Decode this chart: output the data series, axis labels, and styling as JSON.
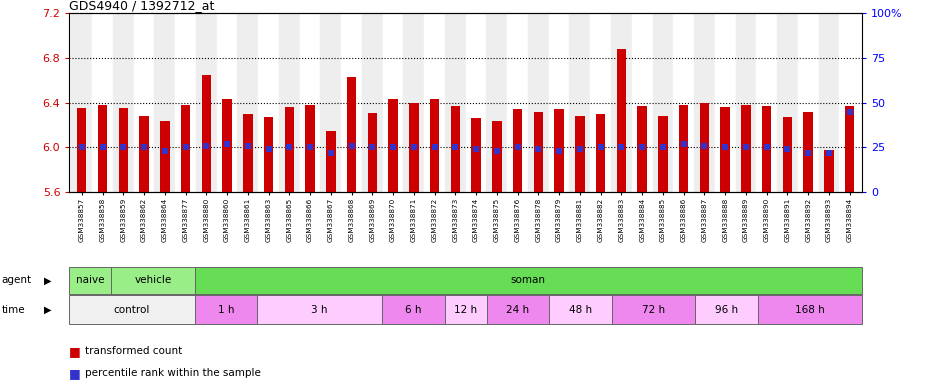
{
  "title": "GDS4940 / 1392712_at",
  "samples": [
    "GSM338857",
    "GSM338858",
    "GSM338859",
    "GSM338862",
    "GSM338864",
    "GSM338877",
    "GSM338880",
    "GSM338860",
    "GSM338861",
    "GSM338863",
    "GSM338865",
    "GSM338866",
    "GSM338867",
    "GSM338868",
    "GSM338869",
    "GSM338870",
    "GSM338871",
    "GSM338872",
    "GSM338873",
    "GSM338874",
    "GSM338875",
    "GSM338876",
    "GSM338878",
    "GSM338879",
    "GSM338881",
    "GSM338882",
    "GSM338883",
    "GSM338884",
    "GSM338885",
    "GSM338886",
    "GSM338887",
    "GSM338888",
    "GSM338889",
    "GSM338890",
    "GSM338891",
    "GSM338892",
    "GSM338893",
    "GSM338894"
  ],
  "bar_tops": [
    6.35,
    6.38,
    6.35,
    6.28,
    6.24,
    6.38,
    6.65,
    6.43,
    6.3,
    6.27,
    6.36,
    6.38,
    6.15,
    6.63,
    6.31,
    6.43,
    6.4,
    6.43,
    6.37,
    6.26,
    6.24,
    6.34,
    6.32,
    6.34,
    6.28,
    6.3,
    6.88,
    6.37,
    6.28,
    6.38,
    6.4,
    6.36,
    6.38,
    6.37,
    6.27,
    6.32,
    5.98,
    6.37
  ],
  "percentile_values": [
    25,
    25,
    25,
    25,
    23,
    25,
    26,
    27,
    26,
    24,
    25,
    25,
    22,
    26,
    25,
    25,
    25,
    25,
    25,
    24,
    23,
    25,
    24,
    23,
    24,
    25,
    25,
    25,
    25,
    27,
    26,
    25,
    25,
    25,
    24,
    22,
    22,
    45
  ],
  "bar_bottom": 5.6,
  "ylim_left": [
    5.6,
    7.2
  ],
  "ylim_right": [
    0,
    100
  ],
  "yticks_left": [
    5.6,
    6.0,
    6.4,
    6.8,
    7.2
  ],
  "yticks_right": [
    0,
    25,
    50,
    75,
    100
  ],
  "bar_color": "#cc0000",
  "blue_marker_color": "#3333cc",
  "dotted_line_values": [
    6.0,
    6.4,
    6.8
  ],
  "agent_groups": [
    {
      "label": "naive",
      "start": 0,
      "end": 2,
      "color": "#99ee88"
    },
    {
      "label": "vehicle",
      "start": 2,
      "end": 6,
      "color": "#99ee88"
    },
    {
      "label": "soman",
      "start": 6,
      "end": 38,
      "color": "#66dd55"
    }
  ],
  "time_groups": [
    {
      "label": "control",
      "start": 0,
      "end": 6,
      "color": "#f0f0f0"
    },
    {
      "label": "1 h",
      "start": 6,
      "end": 9,
      "color": "#ee88ee"
    },
    {
      "label": "3 h",
      "start": 9,
      "end": 15,
      "color": "#ffccff"
    },
    {
      "label": "6 h",
      "start": 15,
      "end": 18,
      "color": "#ee88ee"
    },
    {
      "label": "12 h",
      "start": 18,
      "end": 20,
      "color": "#ffccff"
    },
    {
      "label": "24 h",
      "start": 20,
      "end": 23,
      "color": "#ee88ee"
    },
    {
      "label": "48 h",
      "start": 23,
      "end": 26,
      "color": "#ffccff"
    },
    {
      "label": "72 h",
      "start": 26,
      "end": 30,
      "color": "#ee88ee"
    },
    {
      "label": "96 h",
      "start": 30,
      "end": 33,
      "color": "#ffccff"
    },
    {
      "label": "168 h",
      "start": 33,
      "end": 38,
      "color": "#ee88ee"
    }
  ],
  "legend_items": [
    {
      "label": "transformed count",
      "color": "#cc0000"
    },
    {
      "label": "percentile rank within the sample",
      "color": "#3333cc"
    }
  ]
}
